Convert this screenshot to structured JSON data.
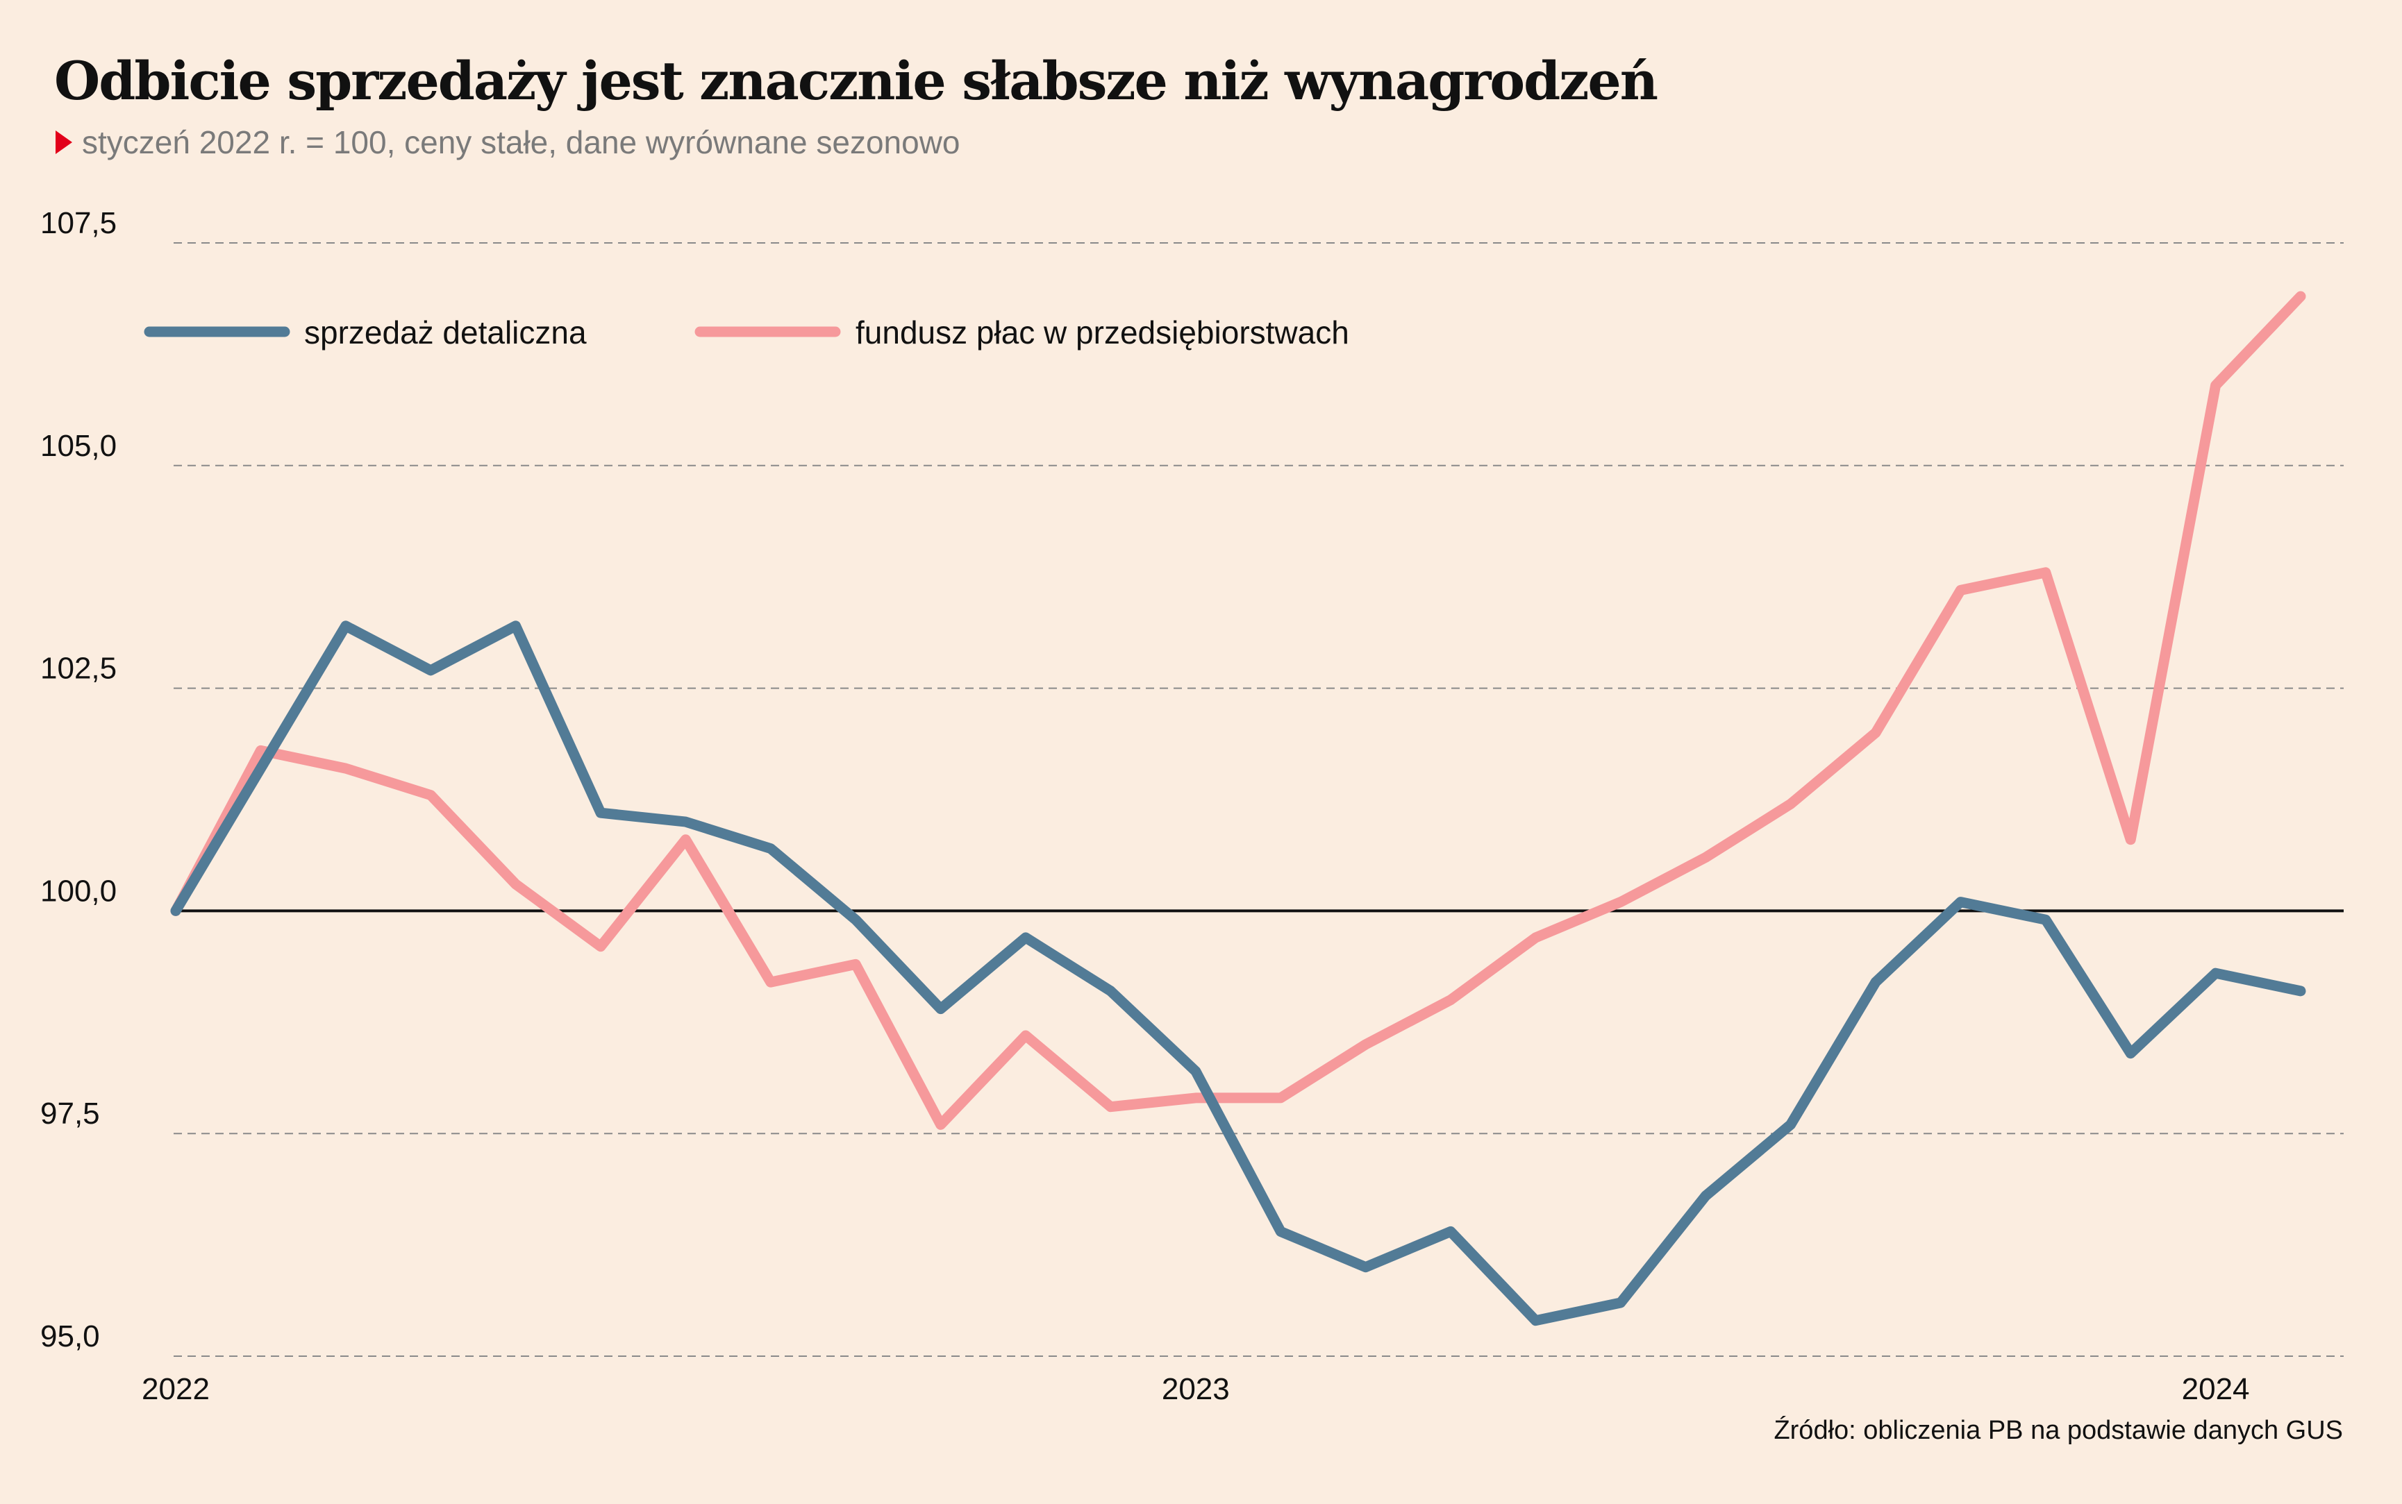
{
  "title": "Odbicie sprzedaży jest znacznie słabsze niż wynagrodzeń",
  "subtitle": "styczeń 2022 r. = 100, ceny stałe, dane wyrównane sezonowo",
  "source": "Źródło: obliczenia PB na podstawie danych GUS",
  "colors": {
    "background": "#fbede0",
    "sales": "#527b96",
    "wages": "#f6999b",
    "accent": "#e2001a",
    "baseline": "#111111",
    "grid": "#8a8a8a"
  },
  "chart_data": {
    "type": "line",
    "title": "Odbicie sprzedaży jest znacznie słabsze niż wynagrodzeń",
    "subtitle": "styczeń 2022 r. = 100, ceny stałe, dane wyrównane sezonowo",
    "x": [
      "2022-01",
      "2022-02",
      "2022-03",
      "2022-04",
      "2022-05",
      "2022-06",
      "2022-07",
      "2022-08",
      "2022-09",
      "2022-10",
      "2022-11",
      "2022-12",
      "2023-01",
      "2023-02",
      "2023-03",
      "2023-04",
      "2023-05",
      "2023-06",
      "2023-07",
      "2023-08",
      "2023-09",
      "2023-10",
      "2023-11",
      "2023-12",
      "2024-01",
      "2024-02"
    ],
    "x_tick_labels": [
      {
        "x": "2022-01",
        "label": "2022"
      },
      {
        "x": "2023-01",
        "label": "2023"
      },
      {
        "x": "2024-01",
        "label": "2024"
      }
    ],
    "ylim": [
      95.0,
      107.5
    ],
    "y_ticks": [
      95.0,
      97.5,
      100.0,
      102.5,
      105.0,
      107.5
    ],
    "y_tick_labels": [
      "95,0",
      "97,5",
      "100,0",
      "102,5",
      "105,0",
      "107,5"
    ],
    "reference_line": 100.0,
    "grid": "horizontal dashed",
    "legend_position": "top-left",
    "series": [
      {
        "name": "sprzedaż detaliczna",
        "color": "#527b96",
        "values": [
          100.0,
          101.6,
          103.2,
          102.7,
          103.2,
          101.1,
          101.0,
          100.7,
          99.9,
          98.9,
          99.7,
          99.1,
          98.2,
          96.4,
          96.0,
          96.4,
          95.4,
          95.6,
          96.8,
          97.6,
          99.2,
          100.1,
          99.9,
          98.4,
          99.3,
          99.1
        ]
      },
      {
        "name": "fundusz płac w przedsiębiorstwach",
        "color": "#f6999b",
        "values": [
          100.0,
          101.8,
          101.6,
          101.3,
          100.3,
          99.6,
          100.8,
          99.2,
          99.4,
          97.6,
          98.6,
          97.8,
          97.9,
          97.9,
          98.5,
          99.0,
          99.7,
          100.1,
          100.6,
          101.2,
          102.0,
          103.6,
          103.8,
          100.8,
          105.9,
          106.9
        ]
      }
    ]
  }
}
